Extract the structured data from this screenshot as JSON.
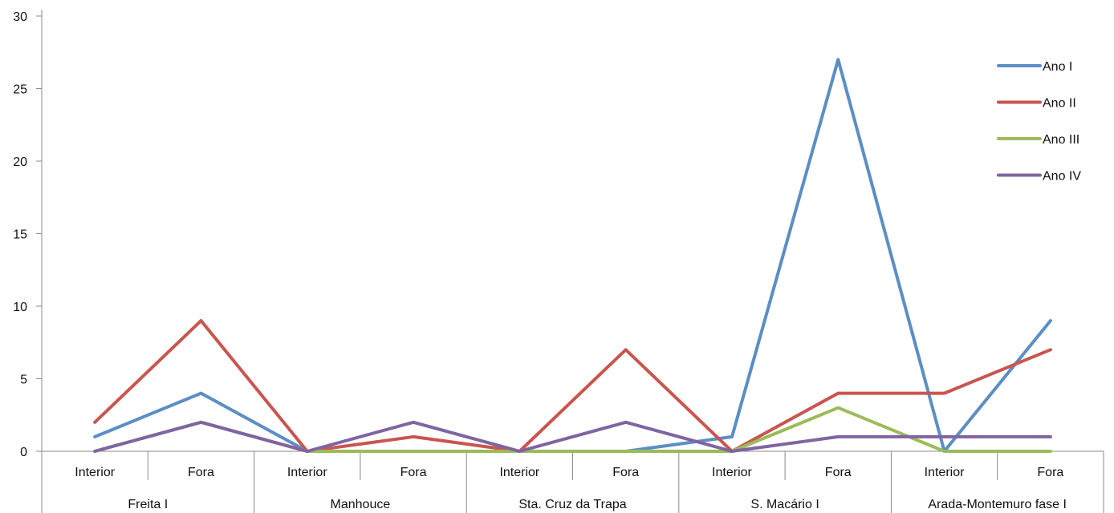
{
  "chart_data": {
    "type": "line",
    "title": "",
    "xlabel": "",
    "ylabel": "",
    "ylim": [
      0,
      30
    ],
    "y_ticks": [
      0,
      5,
      10,
      15,
      20,
      25,
      30
    ],
    "grid": false,
    "legend_position": "right",
    "groups": [
      {
        "label": "Freita I",
        "subcategories": [
          "Interior",
          "Fora"
        ]
      },
      {
        "label": "Manhouce",
        "subcategories": [
          "Interior",
          "Fora"
        ]
      },
      {
        "label": "Sta. Cruz da Trapa",
        "subcategories": [
          "Interior",
          "Fora"
        ]
      },
      {
        "label": "S. Macário I",
        "subcategories": [
          "Interior",
          "Fora"
        ]
      },
      {
        "label": "Arada-Montemuro fase I",
        "subcategories": [
          "Interior",
          "Fora"
        ]
      }
    ],
    "series": [
      {
        "name": "Ano I",
        "color": "#5b8ec4",
        "values": [
          1,
          4,
          0,
          0,
          0,
          0,
          1,
          27,
          0,
          9
        ]
      },
      {
        "name": "Ano II",
        "color": "#c9554f",
        "values": [
          2,
          9,
          0,
          1,
          0,
          7,
          0,
          4,
          4,
          7
        ]
      },
      {
        "name": "Ano III",
        "color": "#9bbb59",
        "values": [
          0,
          2,
          0,
          0,
          0,
          0,
          0,
          3,
          0,
          0
        ]
      },
      {
        "name": "Ano IV",
        "color": "#8064a2",
        "values": [
          0,
          2,
          0,
          2,
          0,
          2,
          0,
          1,
          1,
          1
        ]
      }
    ]
  }
}
